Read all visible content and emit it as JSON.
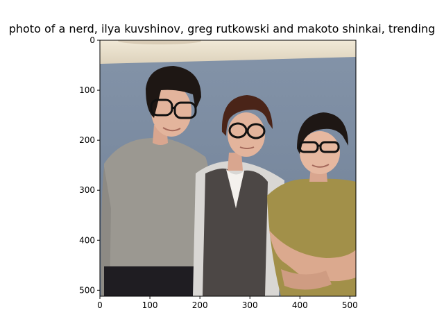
{
  "chart_data": {
    "type": "image",
    "title": "photo of a nerd, ilya kuvshinov, greg rutkowski and makoto shinkai, trending",
    "xlabel": "",
    "ylabel": "",
    "xlim": [
      0,
      512
    ],
    "ylim": [
      512,
      0
    ],
    "x_ticks": [
      0,
      100,
      200,
      300,
      400,
      500
    ],
    "y_ticks": [
      0,
      100,
      200,
      300,
      400,
      500
    ],
    "grid": false,
    "image_content": "three young men standing side by side posing for a photo, all wearing black-rimmed glasses"
  },
  "colors": {
    "wall": "#7e8fa6",
    "ceiling": "#ece3cf",
    "left_shirt": "#9b9891",
    "middle_vest": "#4c4745",
    "right_shirt": "#a29049",
    "hair": "#1e1714",
    "middle_hair": "#4a2418",
    "skin": "#e3b49c"
  }
}
